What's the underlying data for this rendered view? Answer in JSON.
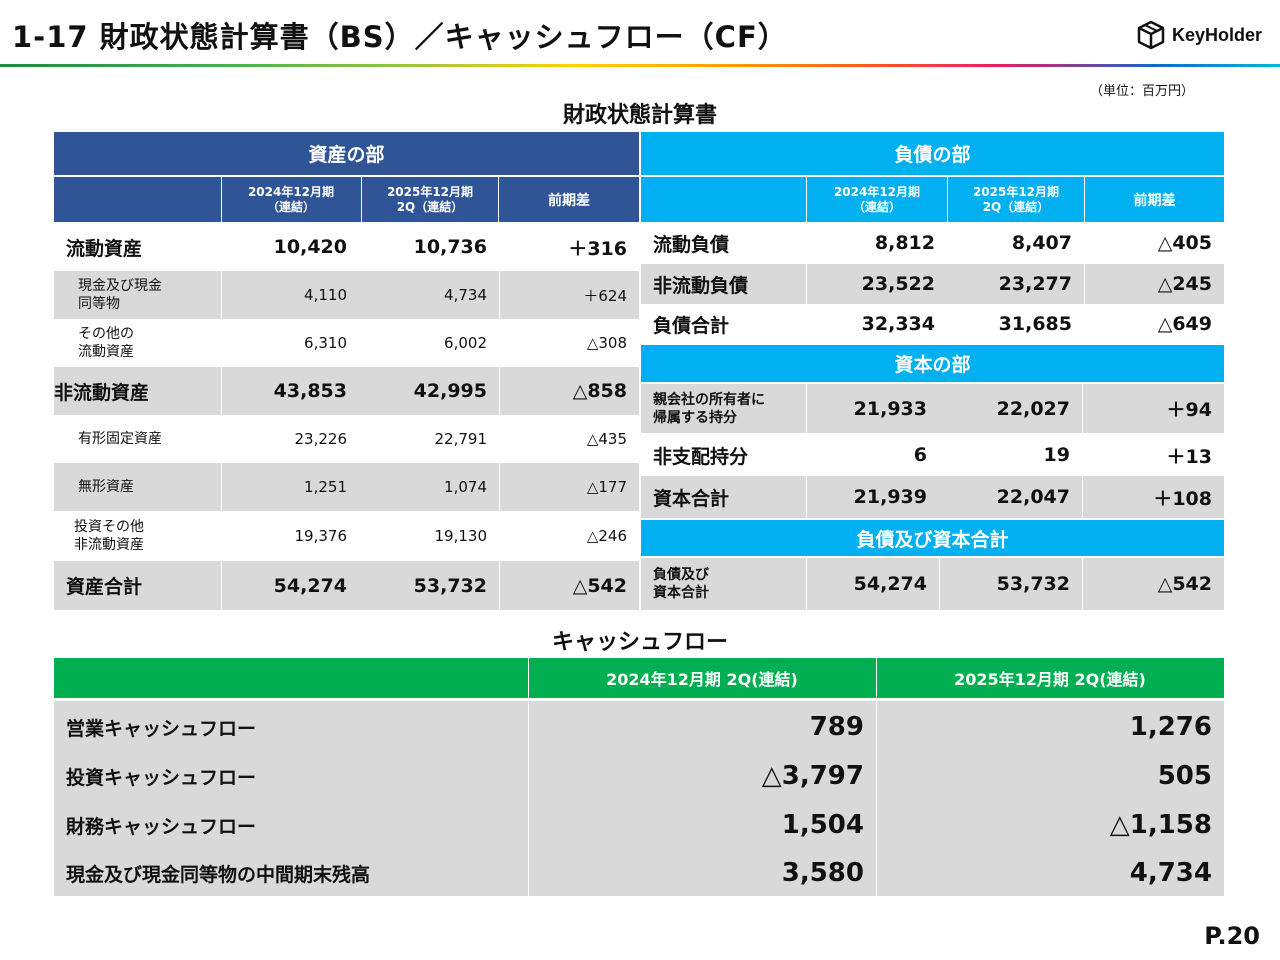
{
  "header": {
    "title": "1-17  財政状態計算書（BS）／キャッシュフロー（CF）",
    "logo_text": "KeyHolder",
    "unit": "（単位：百万円）"
  },
  "bs": {
    "section_title": "財政状態計算書",
    "assets": {
      "header": "資産の部",
      "columns": [
        "2024年12月期\n（連結）",
        "2025年12月期\n2Q（連結）",
        "前期差"
      ],
      "rows": [
        {
          "label": "流動資産",
          "v1": "10,420",
          "v2": "10,736",
          "diff": "＋316"
        },
        {
          "label": "現金及び現金\n同等物",
          "v1": "4,110",
          "v2": "4,734",
          "diff": "＋624"
        },
        {
          "label": "その他の\n流動資産",
          "v1": "6,310",
          "v2": "6,002",
          "diff": "△308"
        },
        {
          "label": "非流動資産",
          "v1": "43,853",
          "v2": "42,995",
          "diff": "△858"
        },
        {
          "label": "有形固定資産",
          "v1": "23,226",
          "v2": "22,791",
          "diff": "△435"
        },
        {
          "label": "無形資産",
          "v1": "1,251",
          "v2": "1,074",
          "diff": "△177"
        },
        {
          "label": "投資その他\n非流動資産",
          "v1": "19,376",
          "v2": "19,130",
          "diff": "△246"
        },
        {
          "label": "資産合計",
          "v1": "54,274",
          "v2": "53,732",
          "diff": "△542"
        }
      ]
    },
    "liabilities": {
      "header": "負債の部",
      "columns": [
        "2024年12月期\n（連結）",
        "2025年12月期\n2Q（連結）",
        "前期差"
      ],
      "rows": [
        {
          "label": "流動負債",
          "v1": "8,812",
          "v2": "8,407",
          "diff": "△405"
        },
        {
          "label": "非流動負債",
          "v1": "23,522",
          "v2": "23,277",
          "diff": "△245"
        },
        {
          "label": "負債合計",
          "v1": "32,334",
          "v2": "31,685",
          "diff": "△649"
        }
      ]
    },
    "equity": {
      "header": "資本の部",
      "rows": [
        {
          "label": "親会社の所有者に\n帰属する持分",
          "v1": "21,933",
          "v2": "22,027",
          "diff": "＋94"
        },
        {
          "label": "非支配持分",
          "v1": "6",
          "v2": "19",
          "diff": "＋13"
        },
        {
          "label": "資本合計",
          "v1": "21,939",
          "v2": "22,047",
          "diff": "＋108"
        }
      ]
    },
    "total": {
      "header": "負債及び資本合計",
      "rows": [
        {
          "label": "負債及び\n資本合計",
          "v1": "54,274",
          "v2": "53,732",
          "diff": "△542"
        }
      ]
    }
  },
  "cf": {
    "section_title": "キャッシュフロー",
    "columns": [
      "2024年12月期 2Q(連結)",
      "2025年12月期 2Q(連結)"
    ],
    "rows": [
      {
        "label": "営業キャッシュフロー",
        "v1": "789",
        "v2": "1,276"
      },
      {
        "label": "投資キャッシュフロー",
        "v1": "△3,797",
        "v2": "505"
      },
      {
        "label": "財務キャッシュフロー",
        "v1": "1,504",
        "v2": "△1,158"
      },
      {
        "label": "現金及び現金同等物の中間期末残高",
        "v1": "3,580",
        "v2": "4,734"
      }
    ]
  },
  "footer": {
    "page": "P.20"
  }
}
